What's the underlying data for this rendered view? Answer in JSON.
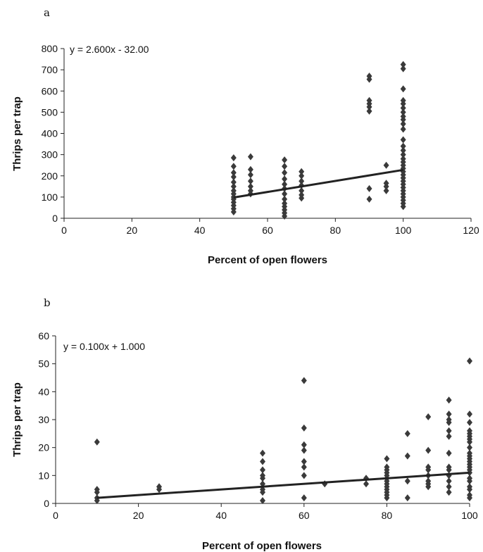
{
  "chart_data": [
    {
      "type": "scatter",
      "panel_label": "a",
      "equation": "y = 2.600x - 32.00",
      "xlabel": "Percent of open flowers",
      "ylabel": "Thrips per trap",
      "xlim": [
        0,
        120
      ],
      "ylim": [
        0,
        800
      ],
      "xticks": [
        0,
        20,
        40,
        60,
        80,
        100,
        120
      ],
      "yticks": [
        0,
        100,
        200,
        300,
        400,
        500,
        600,
        700,
        800
      ],
      "trendline": {
        "slope": 2.6,
        "intercept": -32,
        "x_range": [
          50,
          100
        ]
      },
      "grid": false,
      "points": [
        [
          50,
          30
        ],
        [
          50,
          45
        ],
        [
          50,
          60
        ],
        [
          50,
          75
        ],
        [
          50,
          90
        ],
        [
          50,
          100
        ],
        [
          50,
          115
        ],
        [
          50,
          130
        ],
        [
          50,
          150
        ],
        [
          50,
          170
        ],
        [
          50,
          195
        ],
        [
          50,
          215
        ],
        [
          50,
          245
        ],
        [
          50,
          285
        ],
        [
          55,
          115
        ],
        [
          55,
          130
        ],
        [
          55,
          150
        ],
        [
          55,
          175
        ],
        [
          55,
          205
        ],
        [
          55,
          230
        ],
        [
          55,
          290
        ],
        [
          65,
          10
        ],
        [
          65,
          25
        ],
        [
          65,
          40
        ],
        [
          65,
          55
        ],
        [
          65,
          70
        ],
        [
          65,
          90
        ],
        [
          65,
          115
        ],
        [
          65,
          140
        ],
        [
          65,
          160
        ],
        [
          65,
          185
        ],
        [
          65,
          215
        ],
        [
          65,
          245
        ],
        [
          65,
          275
        ],
        [
          70,
          95
        ],
        [
          70,
          110
        ],
        [
          70,
          130
        ],
        [
          70,
          155
        ],
        [
          70,
          175
        ],
        [
          70,
          200
        ],
        [
          70,
          220
        ],
        [
          90,
          90
        ],
        [
          90,
          140
        ],
        [
          90,
          505
        ],
        [
          90,
          525
        ],
        [
          90,
          540
        ],
        [
          90,
          555
        ],
        [
          90,
          655
        ],
        [
          90,
          670
        ],
        [
          95,
          130
        ],
        [
          95,
          150
        ],
        [
          95,
          165
        ],
        [
          95,
          250
        ],
        [
          100,
          55
        ],
        [
          100,
          70
        ],
        [
          100,
          85
        ],
        [
          100,
          100
        ],
        [
          100,
          115
        ],
        [
          100,
          130
        ],
        [
          100,
          145
        ],
        [
          100,
          160
        ],
        [
          100,
          175
        ],
        [
          100,
          190
        ],
        [
          100,
          205
        ],
        [
          100,
          220
        ],
        [
          100,
          235
        ],
        [
          100,
          250
        ],
        [
          100,
          265
        ],
        [
          100,
          280
        ],
        [
          100,
          300
        ],
        [
          100,
          320
        ],
        [
          100,
          340
        ],
        [
          100,
          370
        ],
        [
          100,
          420
        ],
        [
          100,
          445
        ],
        [
          100,
          465
        ],
        [
          100,
          480
        ],
        [
          100,
          500
        ],
        [
          100,
          520
        ],
        [
          100,
          540
        ],
        [
          100,
          555
        ],
        [
          100,
          610
        ],
        [
          100,
          705
        ],
        [
          100,
          725
        ]
      ]
    },
    {
      "type": "scatter",
      "panel_label": "b",
      "equation": "y = 0.100x + 1.000",
      "xlabel": "Percent of open flowers",
      "ylabel": "Thrips per trap",
      "xlim": [
        0,
        100
      ],
      "ylim": [
        0,
        60
      ],
      "xticks": [
        0,
        20,
        40,
        60,
        80,
        100
      ],
      "yticks": [
        0,
        10,
        20,
        30,
        40,
        50,
        60
      ],
      "trendline": {
        "slope": 0.1,
        "intercept": 1.0,
        "x_range": [
          10,
          100
        ]
      },
      "grid": false,
      "points": [
        [
          10,
          1
        ],
        [
          10,
          2
        ],
        [
          10,
          4
        ],
        [
          10,
          5
        ],
        [
          10,
          22
        ],
        [
          25,
          5
        ],
        [
          25,
          6
        ],
        [
          50,
          1
        ],
        [
          50,
          4
        ],
        [
          50,
          5
        ],
        [
          50,
          7
        ],
        [
          50,
          9
        ],
        [
          50,
          10
        ],
        [
          50,
          12
        ],
        [
          50,
          15
        ],
        [
          50,
          18
        ],
        [
          60,
          2
        ],
        [
          60,
          10
        ],
        [
          60,
          13
        ],
        [
          60,
          15
        ],
        [
          60,
          19
        ],
        [
          60,
          21
        ],
        [
          60,
          27
        ],
        [
          60,
          44
        ],
        [
          65,
          7
        ],
        [
          75,
          7
        ],
        [
          75,
          9
        ],
        [
          80,
          2
        ],
        [
          80,
          3
        ],
        [
          80,
          4
        ],
        [
          80,
          5
        ],
        [
          80,
          6
        ],
        [
          80,
          7
        ],
        [
          80,
          8
        ],
        [
          80,
          9
        ],
        [
          80,
          10
        ],
        [
          80,
          11
        ],
        [
          80,
          12
        ],
        [
          80,
          13
        ],
        [
          80,
          16
        ],
        [
          85,
          2
        ],
        [
          85,
          8
        ],
        [
          85,
          17
        ],
        [
          85,
          25
        ],
        [
          90,
          6
        ],
        [
          90,
          7
        ],
        [
          90,
          8
        ],
        [
          90,
          10
        ],
        [
          90,
          12
        ],
        [
          90,
          13
        ],
        [
          90,
          19
        ],
        [
          90,
          31
        ],
        [
          95,
          4
        ],
        [
          95,
          6
        ],
        [
          95,
          8
        ],
        [
          95,
          10
        ],
        [
          95,
          12
        ],
        [
          95,
          13
        ],
        [
          95,
          18
        ],
        [
          95,
          24
        ],
        [
          95,
          26
        ],
        [
          95,
          29
        ],
        [
          95,
          30
        ],
        [
          95,
          32
        ],
        [
          95,
          37
        ],
        [
          100,
          2
        ],
        [
          100,
          3
        ],
        [
          100,
          5
        ],
        [
          100,
          6
        ],
        [
          100,
          8
        ],
        [
          100,
          9
        ],
        [
          100,
          11
        ],
        [
          100,
          12
        ],
        [
          100,
          13
        ],
        [
          100,
          14
        ],
        [
          100,
          15
        ],
        [
          100,
          16
        ],
        [
          100,
          17
        ],
        [
          100,
          18
        ],
        [
          100,
          20
        ],
        [
          100,
          22
        ],
        [
          100,
          23
        ],
        [
          100,
          24
        ],
        [
          100,
          25
        ],
        [
          100,
          26
        ],
        [
          100,
          29
        ],
        [
          100,
          32
        ],
        [
          100,
          51
        ]
      ]
    }
  ]
}
